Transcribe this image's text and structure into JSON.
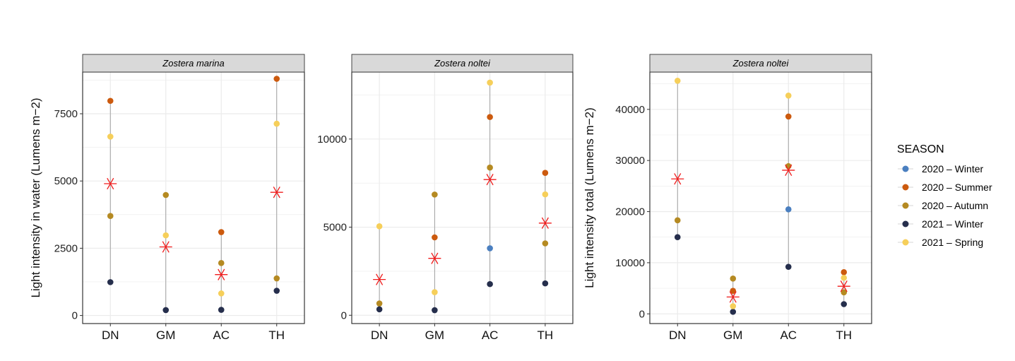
{
  "chart_data": [
    {
      "type": "scatter",
      "panel": "Zostera marina",
      "ylabel": "Light intensity in water (Lumens m−2)",
      "categories": [
        "DN",
        "GM",
        "AC",
        "TH"
      ],
      "ylim": [
        -300,
        9050
      ],
      "yticks": [
        0,
        2500,
        5000,
        7500
      ],
      "series": [
        {
          "name": "2020 – Winter",
          "values": [
            null,
            null,
            null,
            null
          ]
        },
        {
          "name": "2020 – Summer",
          "values": [
            7980,
            null,
            3100,
            8800
          ]
        },
        {
          "name": "2020 – Autumn",
          "values": [
            3700,
            4480,
            1950,
            1380
          ]
        },
        {
          "name": "2021 – Winter",
          "values": [
            1240,
            200,
            210,
            920
          ]
        },
        {
          "name": "2021 – Spring",
          "values": [
            6650,
            2980,
            820,
            7130
          ]
        }
      ],
      "mean": [
        4900,
        2550,
        1520,
        4580
      ]
    },
    {
      "type": "scatter",
      "panel": "Zostera noltei",
      "ylabel": "",
      "categories": [
        "DN",
        "GM",
        "AC",
        "TH"
      ],
      "ylim": [
        -470,
        13800
      ],
      "yticks": [
        0,
        5000,
        10000
      ],
      "series": [
        {
          "name": "2020 – Winter",
          "values": [
            null,
            null,
            3800,
            null
          ]
        },
        {
          "name": "2020 – Summer",
          "values": [
            null,
            4420,
            11250,
            8080
          ]
        },
        {
          "name": "2020 – Autumn",
          "values": [
            670,
            6850,
            8380,
            4080
          ]
        },
        {
          "name": "2021 – Winter",
          "values": [
            340,
            290,
            1770,
            1810
          ]
        },
        {
          "name": "2021 – Spring",
          "values": [
            5050,
            1310,
            13200,
            6860
          ]
        }
      ],
      "mean": [
        2030,
        3230,
        7700,
        5230
      ]
    },
    {
      "type": "scatter",
      "panel": "Zostera noltei",
      "ylabel": "Light intensity total (Lumens m−2)",
      "categories": [
        "DN",
        "GM",
        "AC",
        "TH"
      ],
      "ylim": [
        -1900,
        47300
      ],
      "yticks": [
        0,
        10000,
        20000,
        30000,
        40000
      ],
      "series": [
        {
          "name": "2020 – Winter",
          "values": [
            null,
            null,
            20450,
            null
          ]
        },
        {
          "name": "2020 – Summer",
          "values": [
            null,
            4500,
            38600,
            8150
          ]
        },
        {
          "name": "2020 – Autumn",
          "values": [
            18300,
            6900,
            28900,
            4200
          ]
        },
        {
          "name": "2021 – Winter",
          "values": [
            15000,
            400,
            9200,
            1900
          ]
        },
        {
          "name": "2021 – Spring",
          "values": [
            45600,
            1500,
            42700,
            7050
          ]
        }
      ],
      "mean": [
        26400,
        3300,
        28100,
        5400
      ]
    }
  ],
  "legend": {
    "title": "SEASON",
    "items": [
      {
        "label": "2020 – Winter",
        "color": "#4a7fc0"
      },
      {
        "label": "2020 – Summer",
        "color": "#cc5a0e"
      },
      {
        "label": "2020 – Autumn",
        "color": "#b58a22"
      },
      {
        "label": "2021 – Winter",
        "color": "#252e4c"
      },
      {
        "label": "2021 – Spring",
        "color": "#f6cf5a"
      }
    ]
  },
  "colors": {
    "mean_marker": "#f01c1c",
    "grid": "#ebebeb",
    "strip_fill": "#d9d9d9",
    "range_line": "#9a9a9a"
  }
}
